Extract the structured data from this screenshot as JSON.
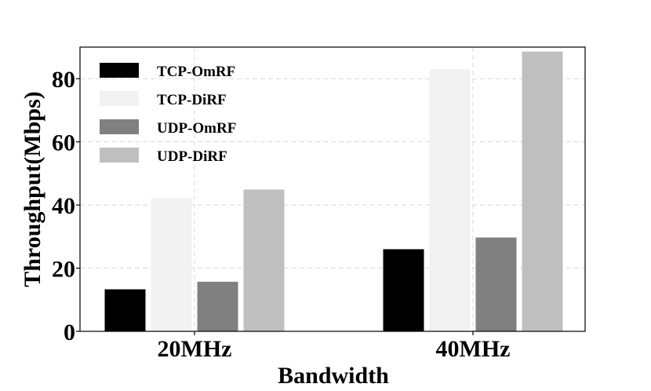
{
  "chart_data": {
    "type": "bar",
    "categories": [
      "20MHz",
      "40MHz"
    ],
    "series": [
      {
        "name": "TCP-OmRF",
        "values": [
          13.3,
          26.0
        ],
        "color": "#000000"
      },
      {
        "name": "TCP-DiRF",
        "values": [
          42.2,
          83.0
        ],
        "color": "#f2f2f2"
      },
      {
        "name": "UDP-OmRF",
        "values": [
          15.7,
          29.7
        ],
        "color": "#808080"
      },
      {
        "name": "UDP-DiRF",
        "values": [
          44.9,
          88.6
        ],
        "color": "#bfbfbf"
      }
    ],
    "xlabel": "Bandwidth",
    "ylabel": "Throughput(Mbps)",
    "ylim": [
      0,
      90
    ],
    "yticks": [
      0,
      20,
      40,
      60,
      80
    ],
    "grid": true,
    "legend": "top-left"
  }
}
